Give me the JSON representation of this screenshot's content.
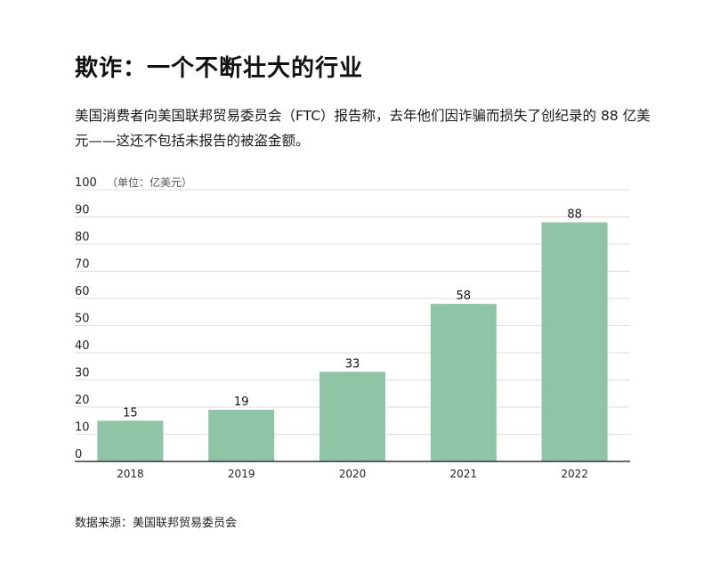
{
  "title": "欺诈：一个不断壮大的行业",
  "subtitle": "美国消费者向美国联邦贸易委员会（FTC）报告称，去年他们因诈骗而损失了创纪录的 88 亿美元——这还不包括未报告的被盗金额。",
  "source": "数据来源：美国联邦贸易委员会",
  "chart_data": {
    "type": "bar",
    "categories": [
      "2018",
      "2019",
      "2020",
      "2021",
      "2022"
    ],
    "values": [
      15,
      19,
      33,
      58,
      88
    ],
    "unit_label": "（单位：亿美元）",
    "ylim": [
      0,
      100
    ],
    "yticks": [
      0,
      10,
      20,
      30,
      40,
      50,
      60,
      70,
      80,
      90,
      100
    ],
    "grid": true,
    "bar_color": "#8fc5a6",
    "grid_color": "#dcdcdc",
    "axis_color": "#333333",
    "data_labels": true
  }
}
